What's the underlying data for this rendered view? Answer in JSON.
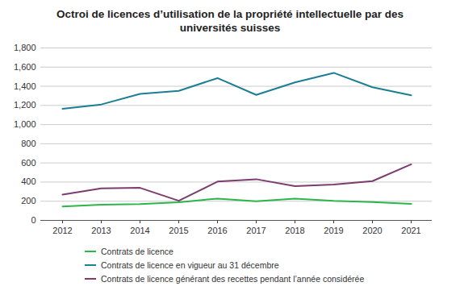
{
  "chart_data": {
    "type": "line",
    "title": "Octroi de licences d’utilisation de la propriété intellectuelle par des universités suisses",
    "categories": [
      "2012",
      "2013",
      "2014",
      "2015",
      "2016",
      "2017",
      "2018",
      "2019",
      "2020",
      "2021"
    ],
    "series": [
      {
        "name": "Contrats de licence",
        "color": "#2db54b",
        "values": [
          145,
          165,
          170,
          190,
          228,
          200,
          228,
          205,
          192,
          172
        ]
      },
      {
        "name": "Contrats de licence en vigueur au 31 décembre",
        "color": "#1b7d96",
        "values": [
          1165,
          1210,
          1320,
          1352,
          1485,
          1310,
          1440,
          1540,
          1390,
          1305
        ]
      },
      {
        "name": "Contrats de licence générant des recettes pendant l’année considérée",
        "color": "#7d3c6e",
        "values": [
          270,
          335,
          340,
          205,
          405,
          430,
          358,
          375,
          410,
          585
        ]
      }
    ],
    "ylim": [
      0,
      1800
    ],
    "yticks": [
      0,
      200,
      400,
      600,
      800,
      1000,
      1200,
      1400,
      1600,
      1800
    ],
    "grid": true,
    "legend": "bottom"
  }
}
